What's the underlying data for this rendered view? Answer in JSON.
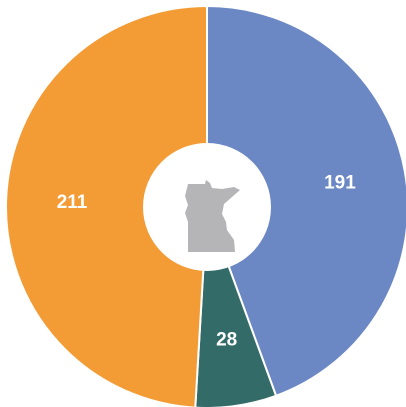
{
  "chart_data": {
    "type": "donut",
    "categories": [
      null,
      null,
      null
    ],
    "values": [
      191,
      28,
      211
    ],
    "colors": [
      "#6b88c4",
      "#336b68",
      "#f39c35"
    ]
  }
}
